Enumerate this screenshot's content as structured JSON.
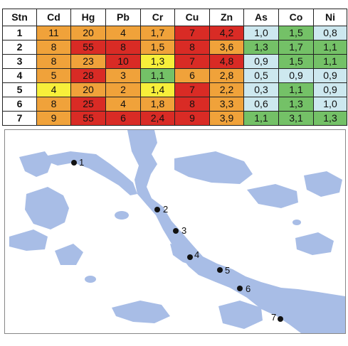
{
  "table": {
    "headers": [
      "Stn",
      "Cd",
      "Hg",
      "Pb",
      "Cr",
      "Cu",
      "Zn",
      "As",
      "Co",
      "Ni"
    ],
    "rows": [
      {
        "stn": "1",
        "cells": [
          [
            "11",
            "or"
          ],
          [
            "20",
            "or"
          ],
          [
            "4",
            "or"
          ],
          [
            "1,7",
            "or"
          ],
          [
            "7",
            "rd"
          ],
          [
            "4,2",
            "rd"
          ],
          [
            "1,0",
            "bl"
          ],
          [
            "1,5",
            "gr"
          ],
          [
            "0,8",
            "bl"
          ]
        ]
      },
      {
        "stn": "2",
        "cells": [
          [
            "8",
            "or"
          ],
          [
            "55",
            "rd"
          ],
          [
            "8",
            "rd"
          ],
          [
            "1,5",
            "or"
          ],
          [
            "8",
            "rd"
          ],
          [
            "3,6",
            "or"
          ],
          [
            "1,3",
            "gr"
          ],
          [
            "1,7",
            "gr"
          ],
          [
            "1,1",
            "gr"
          ]
        ]
      },
      {
        "stn": "3",
        "cells": [
          [
            "8",
            "or"
          ],
          [
            "23",
            "or"
          ],
          [
            "10",
            "rd"
          ],
          [
            "1,3",
            "ye"
          ],
          [
            "7",
            "rd"
          ],
          [
            "4,8",
            "rd"
          ],
          [
            "0,9",
            "bl"
          ],
          [
            "1,5",
            "gr"
          ],
          [
            "1,1",
            "gr"
          ]
        ]
      },
      {
        "stn": "4",
        "cells": [
          [
            "5",
            "or"
          ],
          [
            "28",
            "rd"
          ],
          [
            "3",
            "or"
          ],
          [
            "1,1",
            "gr"
          ],
          [
            "6",
            "or"
          ],
          [
            "2,8",
            "or"
          ],
          [
            "0,5",
            "bl"
          ],
          [
            "0,9",
            "bl"
          ],
          [
            "0,9",
            "bl"
          ]
        ]
      },
      {
        "stn": "5",
        "cells": [
          [
            "4",
            "ye"
          ],
          [
            "20",
            "or"
          ],
          [
            "2",
            "or"
          ],
          [
            "1,4",
            "ye"
          ],
          [
            "7",
            "rd"
          ],
          [
            "2,2",
            "or"
          ],
          [
            "0,3",
            "bl"
          ],
          [
            "1,1",
            "gr"
          ],
          [
            "0,9",
            "bl"
          ]
        ]
      },
      {
        "stn": "6",
        "cells": [
          [
            "8",
            "or"
          ],
          [
            "25",
            "rd"
          ],
          [
            "4",
            "or"
          ],
          [
            "1,8",
            "or"
          ],
          [
            "8",
            "rd"
          ],
          [
            "3,3",
            "or"
          ],
          [
            "0,6",
            "bl"
          ],
          [
            "1,3",
            "gr"
          ],
          [
            "1,0",
            "bl"
          ]
        ]
      },
      {
        "stn": "7",
        "cells": [
          [
            "9",
            "or"
          ],
          [
            "55",
            "rd"
          ],
          [
            "6",
            "rd"
          ],
          [
            "2,4",
            "rd"
          ],
          [
            "9",
            "rd"
          ],
          [
            "3,9",
            "or"
          ],
          [
            "1,1",
            "gr"
          ],
          [
            "3,1",
            "gr"
          ],
          [
            "1,3",
            "gr"
          ]
        ]
      }
    ]
  },
  "map": {
    "station_labels": [
      "1",
      "2",
      "3",
      "4",
      "5",
      "6",
      "7"
    ]
  },
  "colors": {
    "or": "#f0a23a",
    "rd": "#d92b25",
    "ye": "#f7ef3a",
    "gr": "#74c167",
    "bl": "#cde8ef",
    "water": "#a8bde6"
  }
}
